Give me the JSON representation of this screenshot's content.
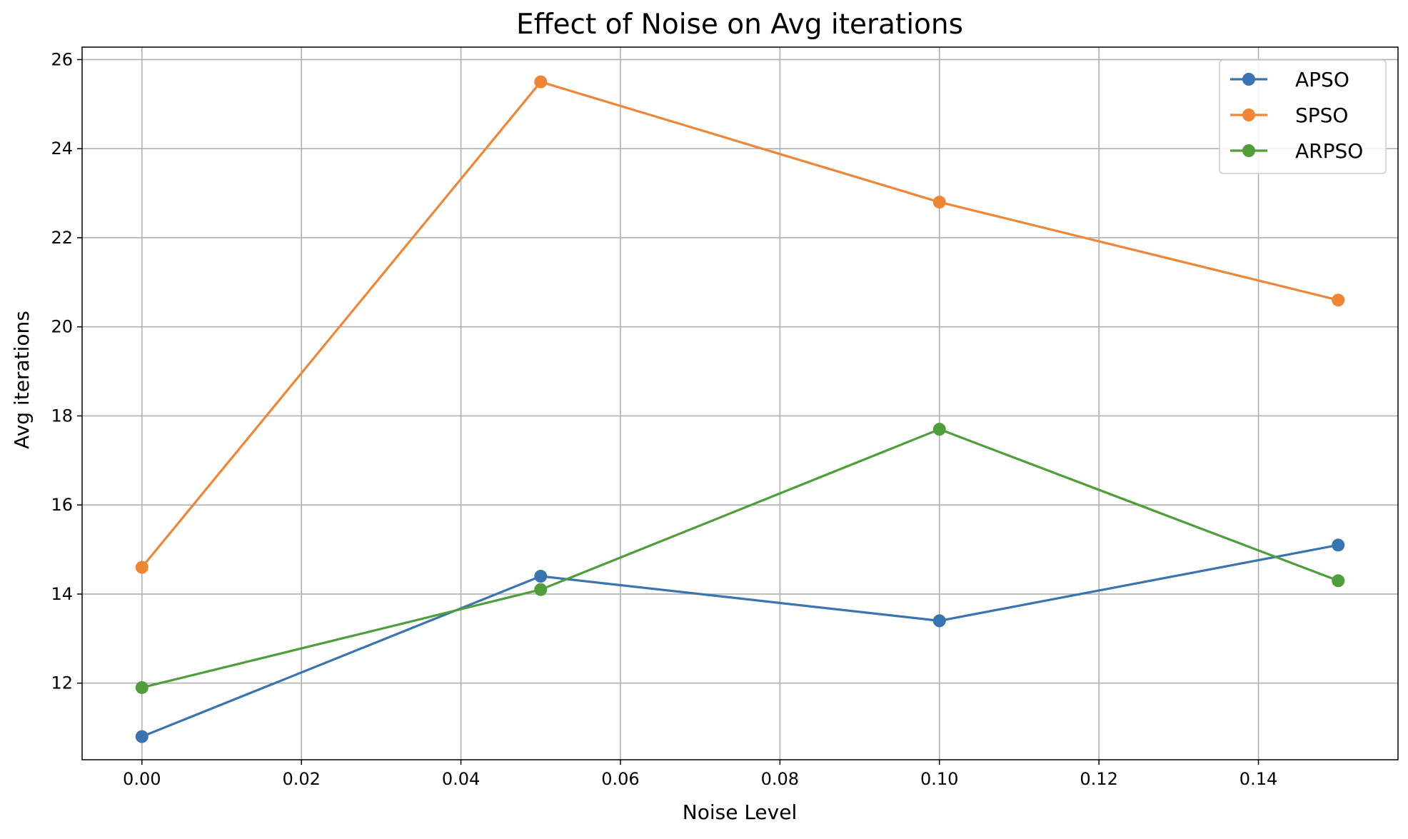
{
  "chart_data": {
    "type": "line",
    "title": "Effect of Noise on Avg iterations",
    "xlabel": "Noise Level",
    "ylabel": "Avg iterations",
    "x": [
      0.0,
      0.05,
      0.1,
      0.15
    ],
    "xlim": [
      -0.0075,
      0.1575
    ],
    "ylim": [
      10.28,
      26.28
    ],
    "xticks": [
      0.0,
      0.02,
      0.04,
      0.06,
      0.08,
      0.1,
      0.12,
      0.14
    ],
    "xtick_labels": [
      "0.00",
      "0.02",
      "0.04",
      "0.06",
      "0.08",
      "0.10",
      "0.12",
      "0.14"
    ],
    "yticks": [
      12,
      14,
      16,
      18,
      20,
      22,
      24,
      26
    ],
    "ytick_labels": [
      "12",
      "14",
      "16",
      "18",
      "20",
      "22",
      "24",
      "26"
    ],
    "grid": true,
    "legend_position": "top-right",
    "series": [
      {
        "name": "APSO",
        "color": "#3a74b0",
        "values": [
          10.8,
          14.4,
          13.4,
          15.1
        ]
      },
      {
        "name": "SPSO",
        "color": "#ef8636",
        "values": [
          14.6,
          25.5,
          22.8,
          20.6
        ]
      },
      {
        "name": "ARPSO",
        "color": "#4f9e3a",
        "values": [
          11.9,
          14.1,
          17.7,
          14.3
        ]
      }
    ]
  }
}
